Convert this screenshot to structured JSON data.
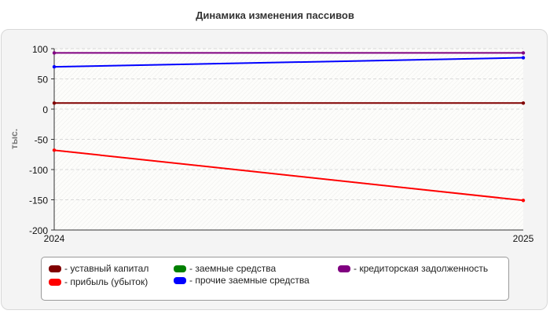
{
  "chart_data": {
    "type": "line",
    "title": "Динамика изменения пассивов",
    "xlabel": "",
    "ylabel": "тыс.",
    "x": [
      "2024",
      "2025"
    ],
    "ylim": [
      -200,
      100
    ],
    "yticks": [
      100,
      50,
      0,
      -50,
      -100,
      -150,
      -200
    ],
    "ytick_labels": [
      "100",
      "50",
      "0",
      "-50",
      "-100",
      "-150",
      "-200"
    ],
    "grid": true,
    "legend_position": "bottom",
    "series": [
      {
        "name": "- уставный капитал",
        "color": "#800000",
        "values": [
          10,
          10
        ]
      },
      {
        "name": "- прибыль (убыток)",
        "color": "#ff0000",
        "values": [
          -68,
          -151
        ]
      },
      {
        "name": "- заемные средства",
        "color": "#008000",
        "values": [
          null,
          null
        ]
      },
      {
        "name": "- прочие заемные средства",
        "color": "#0000ff",
        "values": [
          70,
          85
        ]
      },
      {
        "name": "- кредиторская задолженность",
        "color": "#800080",
        "values": [
          93,
          93
        ]
      }
    ]
  }
}
